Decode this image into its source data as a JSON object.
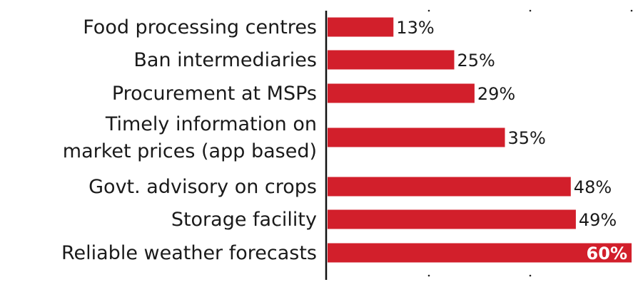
{
  "chart_data": {
    "type": "bar",
    "orientation": "horizontal",
    "categories": [
      [
        "Food processing centres"
      ],
      [
        "Ban intermediaries"
      ],
      [
        "Procurement at MSPs"
      ],
      [
        "Timely information on",
        "market prices (app based)"
      ],
      [
        "Govt. advisory on crops"
      ],
      [
        "Storage facility"
      ],
      [
        "Reliable weather forecasts"
      ]
    ],
    "values": [
      13,
      25,
      29,
      35,
      48,
      49,
      60
    ],
    "value_labels": [
      "13%",
      "25%",
      "29%",
      "35%",
      "48%",
      "49%",
      "60%"
    ],
    "unit": "%",
    "xlim": [
      0,
      60
    ],
    "grid_ticks": [
      20,
      40,
      60
    ],
    "bar_color": "#d21f2b",
    "grid": false,
    "title": "",
    "xlabel": "",
    "ylabel": ""
  }
}
